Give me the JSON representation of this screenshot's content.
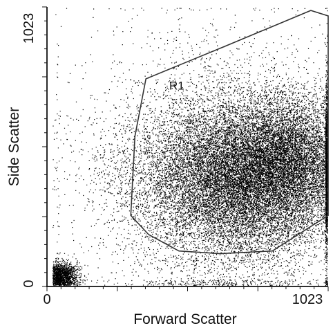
{
  "chart_data": {
    "type": "scatter",
    "title": "",
    "xlabel": "Forward Scatter",
    "ylabel": "Side Scatter",
    "xlim": [
      0,
      1023
    ],
    "ylim": [
      0,
      1023
    ],
    "x_tick_labels": [
      "0",
      "1023"
    ],
    "y_tick_labels": [
      "0",
      "1023"
    ],
    "grid": false,
    "marker_color": "#000000",
    "populations": [
      {
        "center": [
          700,
          400
        ],
        "spread": [
          190,
          150
        ],
        "count": 17000
      },
      {
        "center": [
          880,
          470
        ],
        "spread": [
          110,
          110
        ],
        "count": 5000
      },
      {
        "center": [
          55,
          40
        ],
        "spread": [
          30,
          25
        ],
        "count": 1500
      },
      {
        "center": [
          600,
          420
        ],
        "spread": [
          280,
          280
        ],
        "count": 2500
      }
    ],
    "gate": {
      "name": "R1",
      "vertices": [
        [
          320,
          550
        ],
        [
          360,
          760
        ],
        [
          650,
          880
        ],
        [
          960,
          1010
        ],
        [
          1023,
          990
        ],
        [
          1023,
          260
        ],
        [
          820,
          130
        ],
        [
          630,
          120
        ],
        [
          480,
          130
        ],
        [
          370,
          190
        ],
        [
          305,
          260
        ]
      ]
    }
  }
}
